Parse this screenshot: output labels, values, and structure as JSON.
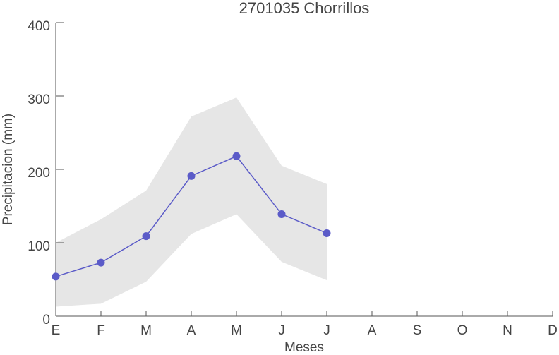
{
  "chart_data": {
    "type": "line",
    "title": "2701035 Chorrillos",
    "xlabel": "Meses",
    "ylabel": "Precipitacion (mm)",
    "categories": [
      "E",
      "F",
      "M",
      "A",
      "M",
      "J",
      "J",
      "A",
      "S",
      "O",
      "N",
      "D"
    ],
    "series": [
      {
        "name": "media",
        "color": "#5b5bc8",
        "values": [
          54,
          73,
          109,
          191,
          218,
          139,
          113,
          null,
          null,
          null,
          null,
          null
        ]
      }
    ],
    "band": {
      "color": "#e6e6e6",
      "upper": [
        100,
        132,
        171,
        272,
        298,
        205,
        180,
        null,
        null,
        null,
        null,
        null
      ],
      "lower": [
        13,
        17,
        47,
        112,
        139,
        74,
        49,
        null,
        null,
        null,
        null,
        null
      ]
    },
    "ylim": [
      0,
      400
    ],
    "yticks": [
      0,
      100,
      200,
      300,
      400
    ]
  }
}
